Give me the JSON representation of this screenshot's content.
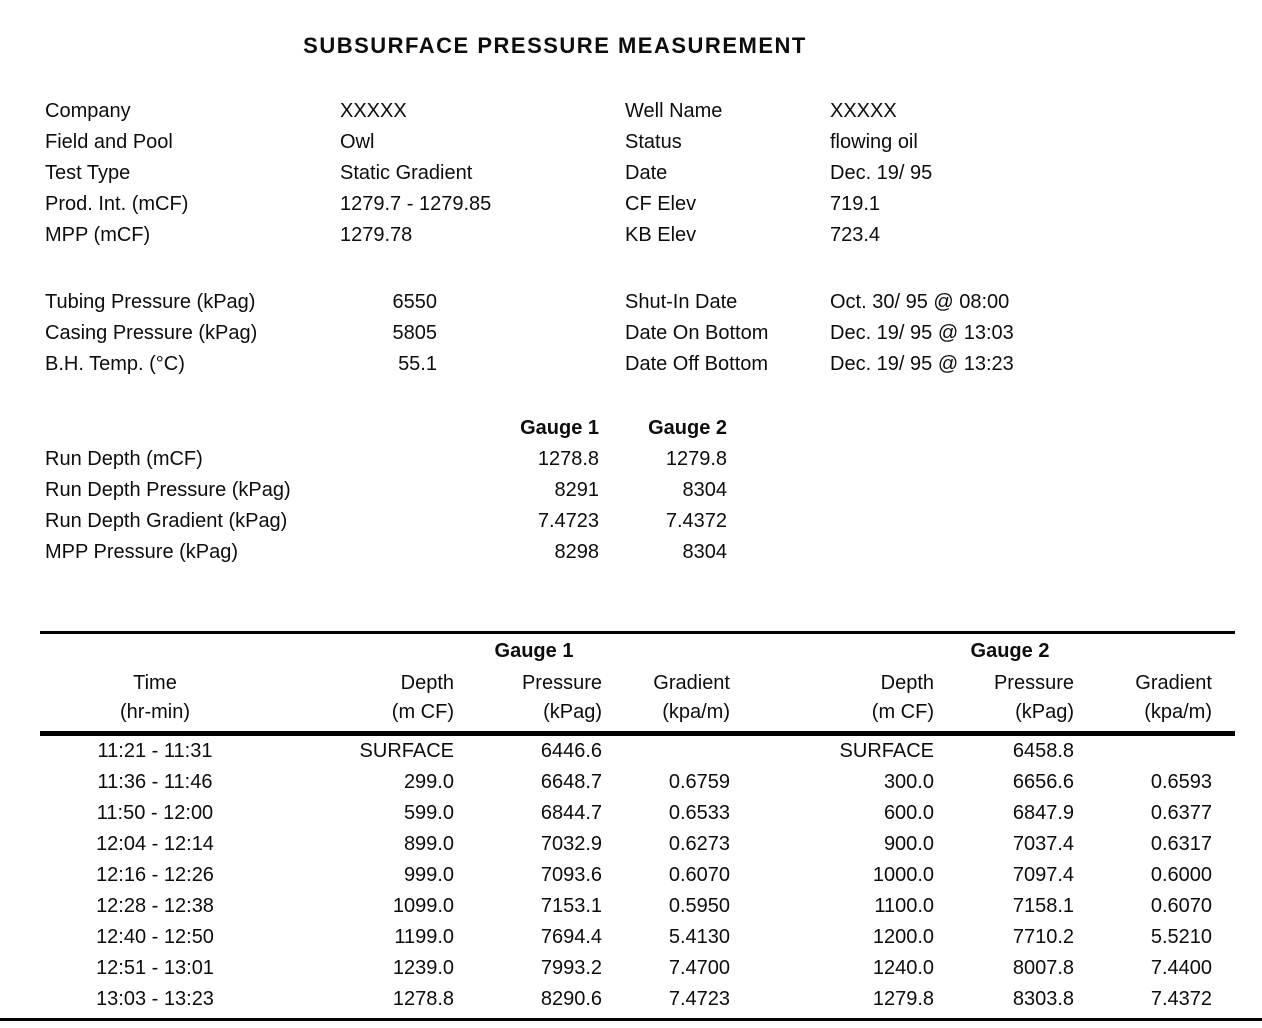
{
  "title": "SUBSURFACE PRESSURE MEASUREMENT",
  "colors": {
    "text": "#000000",
    "background": "#ffffff"
  },
  "info": {
    "left": [
      {
        "label": "Company",
        "value": "XXXXX"
      },
      {
        "label": "Field and Pool",
        "value": "Owl"
      },
      {
        "label": "Test Type",
        "value": "Static Gradient"
      },
      {
        "label": "Prod. Int. (mCF)",
        "value": "1279.7 - 1279.85"
      },
      {
        "label": "MPP (mCF)",
        "value": "1279.78"
      }
    ],
    "right": [
      {
        "label": "Well Name",
        "value": "XXXXX"
      },
      {
        "label": "Status",
        "value": "flowing oil"
      },
      {
        "label": "Date",
        "value": "Dec. 19/ 95"
      },
      {
        "label": "CF Elev",
        "value": "719.1"
      },
      {
        "label": "KB Elev",
        "value": "723.4"
      }
    ]
  },
  "pressures": {
    "left": [
      {
        "label": "Tubing Pressure (kPag)",
        "value": "6550"
      },
      {
        "label": "Casing Pressure (kPag)",
        "value": "5805"
      },
      {
        "label": "B.H. Temp. (°C)",
        "value": "55.1"
      }
    ],
    "right": [
      {
        "label": "Shut-In Date",
        "value": "Oct. 30/ 95 @ 08:00"
      },
      {
        "label": "Date On Bottom",
        "value": "Dec. 19/ 95 @ 13:03"
      },
      {
        "label": "Date Off Bottom",
        "value": "Dec. 19/ 95 @ 13:23"
      }
    ]
  },
  "gauge_summary": {
    "col_headers": [
      "Gauge 1",
      "Gauge 2"
    ],
    "rows": [
      {
        "label": "Run Depth (mCF)",
        "gauge1": "1278.8",
        "gauge2": "1279.8"
      },
      {
        "label": "Run Depth Pressure (kPag)",
        "gauge1": "8291",
        "gauge2": "8304"
      },
      {
        "label": "Run Depth Gradient (kPag)",
        "gauge1": "7.4723",
        "gauge2": "7.4372"
      },
      {
        "label": "MPP Pressure (kPag)",
        "gauge1": "8298",
        "gauge2": "8304"
      }
    ]
  },
  "table": {
    "group_headers": [
      "Gauge 1",
      "Gauge 2"
    ],
    "columns": [
      {
        "title": "Time",
        "unit": "(hr-min)"
      },
      {
        "title": "Depth",
        "unit": "(m CF)"
      },
      {
        "title": "Pressure",
        "unit": "(kPag)"
      },
      {
        "title": "Gradient",
        "unit": "(kpa/m)"
      },
      {
        "title": "Depth",
        "unit": "(m CF)"
      },
      {
        "title": "Pressure",
        "unit": "(kPag)"
      },
      {
        "title": "Gradient",
        "unit": "(kpa/m)"
      }
    ],
    "rows": [
      [
        "11:21 - 11:31",
        "SURFACE",
        "6446.6",
        "",
        "SURFACE",
        "6458.8",
        ""
      ],
      [
        "11:36 - 11:46",
        "299.0",
        "6648.7",
        "0.6759",
        "300.0",
        "6656.6",
        "0.6593"
      ],
      [
        "11:50 - 12:00",
        "599.0",
        "6844.7",
        "0.6533",
        "600.0",
        "6847.9",
        "0.6377"
      ],
      [
        "12:04 - 12:14",
        "899.0",
        "7032.9",
        "0.6273",
        "900.0",
        "7037.4",
        "0.6317"
      ],
      [
        "12:16 - 12:26",
        "999.0",
        "7093.6",
        "0.6070",
        "1000.0",
        "7097.4",
        "0.6000"
      ],
      [
        "12:28 - 12:38",
        "1099.0",
        "7153.1",
        "0.5950",
        "1100.0",
        "7158.1",
        "0.6070"
      ],
      [
        "12:40 - 12:50",
        "1199.0",
        "7694.4",
        "5.4130",
        "1200.0",
        "7710.2",
        "5.5210"
      ],
      [
        "12:51 - 13:01",
        "1239.0",
        "7993.2",
        "7.4700",
        "1240.0",
        "8007.8",
        "7.4400"
      ],
      [
        "13:03 - 13:23",
        "1278.8",
        "8290.6",
        "7.4723",
        "1279.8",
        "8303.8",
        "7.4372"
      ]
    ]
  }
}
